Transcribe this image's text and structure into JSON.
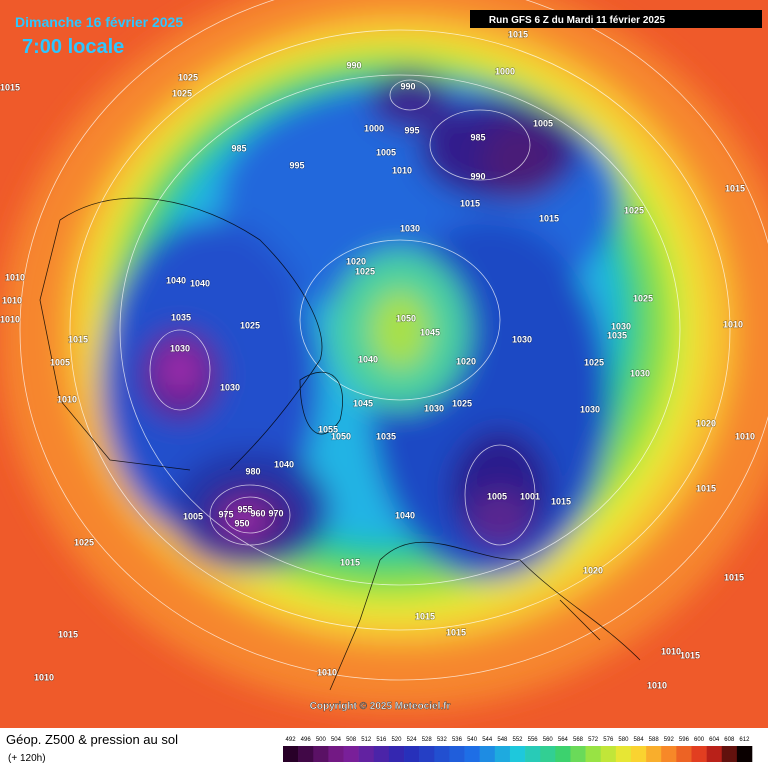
{
  "header": {
    "title": "Dimanche 16 février 2025",
    "time": "7:00 locale",
    "run": "Run GFS 6 Z du Mardi 11 février 2025"
  },
  "copyright": "Copyright © 2025 Meteociel.fr",
  "footer": {
    "label": "Géop. Z500 & pression au sol",
    "range": "(+ 120h)"
  },
  "legend": {
    "values": [
      492,
      496,
      500,
      504,
      508,
      512,
      516,
      520,
      524,
      528,
      532,
      536,
      540,
      544,
      548,
      552,
      556,
      560,
      564,
      568,
      572,
      576,
      580,
      584,
      588,
      592,
      596,
      600,
      604,
      608,
      612
    ]
  },
  "pressure_labels": [
    "1015",
    "1000",
    "990",
    "990",
    "1025",
    "1025",
    "1015",
    "1000",
    "995",
    "985",
    "1005",
    "985",
    "995",
    "1005",
    "1010",
    "990",
    "1015",
    "1015",
    "1025",
    "1015",
    "1030",
    "1020",
    "1025",
    "1040",
    "1040",
    "1035",
    "1025",
    "1050",
    "1045",
    "1030",
    "1025",
    "1030",
    "1035",
    "1010",
    "1010",
    "1010",
    "1015",
    "1030",
    "1040",
    "1020",
    "1025",
    "1030",
    "1010",
    "1005",
    "1030",
    "1010",
    "1045",
    "1030",
    "1025",
    "1030",
    "1020",
    "1010",
    "1055",
    "1050",
    "1035",
    "1040",
    "980",
    "1005",
    "1001",
    "1015",
    "1015",
    "955",
    "960",
    "975",
    "970",
    "950",
    "1005",
    "1040",
    "1025",
    "1015",
    "1020",
    "1015",
    "1015",
    "1015",
    "1015",
    "1010",
    "1010",
    "1010",
    "1010",
    "1015"
  ]
}
